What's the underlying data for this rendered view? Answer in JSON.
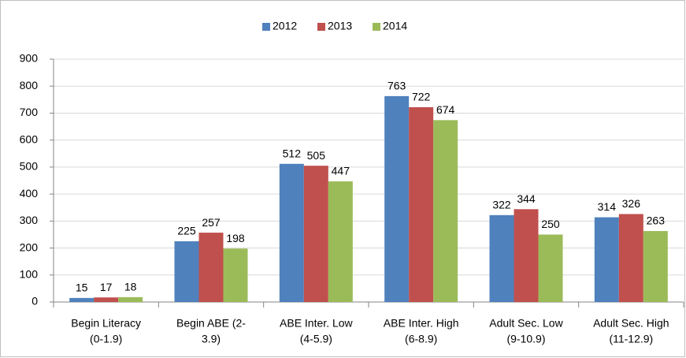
{
  "chart_data": {
    "type": "bar",
    "categories": [
      [
        "Begin Literacy",
        "(0-1.9)"
      ],
      [
        "Begin ABE (2-",
        "3.9)"
      ],
      [
        "ABE Inter. Low",
        "(4-5.9)"
      ],
      [
        "ABE Inter. High",
        "(6-8.9)"
      ],
      [
        "Adult Sec. Low",
        "(9-10.9)"
      ],
      [
        "Adult Sec. High",
        "(11-12.9)"
      ]
    ],
    "series": [
      {
        "name": "2012",
        "color": "#4f81bd",
        "values": [
          15,
          225,
          512,
          763,
          322,
          314
        ]
      },
      {
        "name": "2013",
        "color": "#c0504d",
        "values": [
          17,
          257,
          505,
          722,
          344,
          326
        ]
      },
      {
        "name": "2014",
        "color": "#9bbb59",
        "values": [
          18,
          198,
          447,
          674,
          250,
          263
        ]
      }
    ],
    "ylim": [
      0,
      900
    ],
    "yticks": [
      0,
      100,
      200,
      300,
      400,
      500,
      600,
      700,
      800,
      900
    ],
    "grid": true,
    "legend": "top"
  }
}
